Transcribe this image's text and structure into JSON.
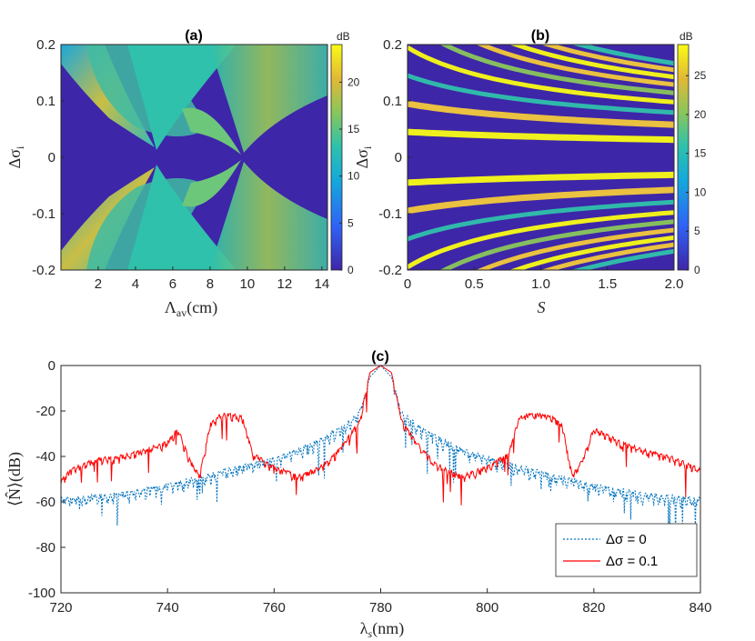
{
  "chart_data": [
    {
      "type": "heatmap",
      "panel_label": "(a)",
      "xlabel": "Λav(cm)",
      "ylabel": "Δσi",
      "xlim": [
        0,
        14.3
      ],
      "ylim": [
        -0.2,
        0.2
      ],
      "xticks": [
        "2",
        "4",
        "6",
        "8",
        "10",
        "12",
        "14"
      ],
      "yticks": [
        "0.2",
        "0.1",
        "0",
        "-0.1",
        "-0.2"
      ],
      "colorbar": {
        "unit": "dB",
        "range": [
          0,
          24
        ],
        "ticks": [
          "20",
          "15",
          "10",
          "5",
          "0"
        ]
      },
      "description_values": {
        "background_dB": 0,
        "band_peak_dB": 22,
        "band_center_min_detuning": [
          {
            "x": 0.5,
            "dsigma": 0.2
          },
          {
            "x": 5.0,
            "dsigma": 0.0
          },
          {
            "x": 10.0,
            "dsigma": 0.0
          }
        ]
      }
    },
    {
      "type": "heatmap",
      "panel_label": "(b)",
      "xlabel": "S",
      "ylabel": "Δσi",
      "xlim": [
        0,
        2.0
      ],
      "ylim": [
        -0.2,
        0.2
      ],
      "xticks": [
        "0",
        "0.5",
        "1.0",
        "1.5",
        "2.0"
      ],
      "yticks": [
        "0.2",
        "0.1",
        "0",
        "-0.1",
        "-0.2"
      ],
      "colorbar": {
        "unit": "dB",
        "range": [
          0,
          29
        ],
        "ticks": [
          "25",
          "20",
          "15",
          "10",
          "5",
          "0"
        ]
      },
      "description_values": {
        "background_dB": 0,
        "fringe_peak_dB": 28
      }
    },
    {
      "type": "line",
      "panel_label": "(c)",
      "xlabel": "λs(nm)",
      "ylabel": "⟨N̂⟩(dB)",
      "xlim": [
        720,
        840
      ],
      "ylim": [
        -100,
        0
      ],
      "xticks": [
        "720",
        "740",
        "760",
        "780",
        "800",
        "820",
        "840"
      ],
      "yticks": [
        "0",
        "-20",
        "-40",
        "-60",
        "-80",
        "-100"
      ],
      "series": [
        {
          "name": "Δσ = 0",
          "color": "#0072BD",
          "style": "dotted",
          "x": [
            720,
            725,
            730,
            735,
            740,
            745,
            750,
            755,
            760,
            765,
            770,
            773,
            776,
            778,
            780,
            782,
            784,
            787,
            790,
            795,
            800,
            805,
            810,
            815,
            820,
            825,
            830,
            835,
            840
          ],
          "values": [
            -58,
            -57,
            -56,
            -54,
            -52,
            -49,
            -46,
            -43,
            -40,
            -36,
            -30,
            -26,
            -20,
            -5,
            0,
            -5,
            -20,
            -26,
            -30,
            -36,
            -40,
            -43,
            -46,
            -49,
            -52,
            -54,
            -56,
            -57,
            -58
          ]
        },
        {
          "name": "Δσ = 0.1",
          "color": "#FF0000",
          "style": "solid",
          "x": [
            720,
            722,
            725,
            728,
            730,
            735,
            740,
            742,
            744,
            746,
            748,
            750,
            752,
            754,
            756,
            760,
            765,
            770,
            773,
            776,
            778,
            780,
            782,
            784,
            787,
            790,
            795,
            800,
            804,
            806,
            808,
            810,
            812,
            814,
            816,
            818,
            820,
            825,
            830,
            835,
            840
          ],
          "values": [
            -50,
            -45,
            -42,
            -40,
            -40,
            -37,
            -33,
            -27,
            -40,
            -48,
            -25,
            -21,
            -21,
            -22,
            -38,
            -44,
            -48,
            -42,
            -34,
            -24,
            -3,
            0,
            -3,
            -24,
            -34,
            -42,
            -48,
            -44,
            -38,
            -22,
            -21,
            -21,
            -22,
            -25,
            -48,
            -40,
            -27,
            -33,
            -37,
            -40,
            -45
          ]
        }
      ],
      "legend": {
        "position": "bottom-right",
        "entries": [
          "Δσ = 0",
          "Δσ = 0.1"
        ]
      }
    }
  ]
}
